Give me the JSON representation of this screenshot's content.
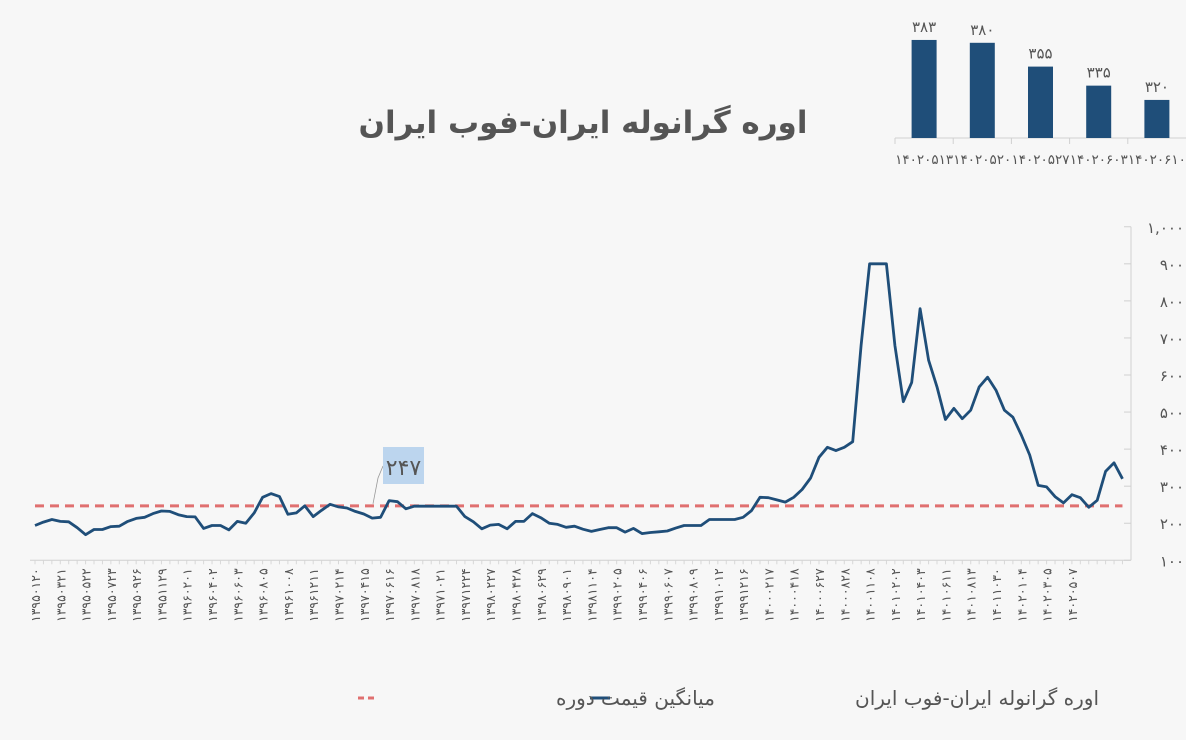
{
  "chart_data": [
    {
      "type": "line",
      "title": "اوره گرانوله ایران-فوب ایران",
      "xlabel": "",
      "ylabel": "",
      "ylim": [
        100,
        1000
      ],
      "y_ticks": [
        100,
        200,
        300,
        400,
        500,
        600,
        700,
        800,
        900,
        1000
      ],
      "y_tick_labels": [
        "۱۰۰",
        "۲۰۰",
        "۳۰۰",
        "۴۰۰",
        "۵۰۰",
        "۶۰۰",
        "۷۰۰",
        "۸۰۰",
        "۹۰۰",
        "۱,۰۰۰"
      ],
      "y_axis_side": "right",
      "grid": false,
      "legend_position": "bottom",
      "x_tick_labels": [
        "۱۳۹۵۰۱۲۰",
        "۱۳۹۵۰۳۲۱",
        "۱۳۹۵۰۵۲۲",
        "۱۳۹۵۰۷۲۳",
        "۱۳۹۵۰۹۲۶",
        "۱۳۹۵۱۱۲۹",
        "۱۳۹۶۰۲۰۱",
        "۱۳۹۶۰۴۰۲",
        "۱۳۹۶۰۶۰۳",
        "۱۳۹۶۰۸۰۵",
        "۱۳۹۶۱۰۰۸",
        "۱۳۹۶۱۲۱۱",
        "۱۳۹۷۰۲۱۴",
        "۱۳۹۷۰۴۱۵",
        "۱۳۹۷۰۶۱۶",
        "۱۳۹۷۰۸۱۸",
        "۱۳۹۷۱۰۲۱",
        "۱۳۹۷۱۲۲۴",
        "۱۳۹۸۰۲۲۷",
        "۱۳۹۸۰۴۲۸",
        "۱۳۹۸۰۶۲۹",
        "۱۳۹۸۰۹۰۱",
        "۱۳۹۸۱۱۰۴",
        "۱۳۹۹۰۲۰۵",
        "۱۳۹۹۰۴۰۶",
        "۱۳۹۹۰۶۰۷",
        "۱۳۹۹۰۸۰۹",
        "۱۳۹۹۱۰۱۲",
        "۱۳۹۹۱۲۱۶",
        "۱۴۰۰۰۲۱۷",
        "۱۴۰۰۰۴۱۸",
        "۱۴۰۰۰۶۲۷",
        "۱۴۰۰۰۸۲۸",
        "۱۴۰۰۱۱۰۸",
        "۱۴۰۱۰۲۰۲",
        "۱۴۰۱۰۴۰۳",
        "۱۴۰۱۰۶۱۱",
        "۱۴۰۱۰۸۱۳",
        "۱۴۰۱۱۰۳۰",
        "۱۴۰۲۰۱۰۴",
        "۱۴۰۲۰۳۰۵",
        "۱۴۰۲۰۵۰۷"
      ],
      "series": [
        {
          "name": "اوره گرانوله ایران-فوب ایران",
          "color": "#1f4e79",
          "style": "solid",
          "values": [
            194,
            203,
            210,
            205,
            204,
            188,
            169,
            183,
            183,
            191,
            192,
            205,
            213,
            216,
            226,
            233,
            232,
            223,
            218,
            217,
            186,
            194,
            194,
            182,
            205,
            200,
            228,
            270,
            280,
            272,
            224,
            228,
            247,
            218,
            235,
            251,
            244,
            241,
            232,
            225,
            214,
            216,
            261,
            258,
            239,
            246,
            246,
            246,
            246,
            246,
            246,
            218,
            204,
            185,
            195,
            197,
            185,
            205,
            205,
            226,
            215,
            200,
            197,
            189,
            192,
            184,
            178,
            183,
            188,
            188,
            176,
            186,
            172,
            175,
            177,
            179,
            187,
            194,
            194,
            194,
            210,
            210,
            210,
            210,
            216,
            234,
            270,
            269,
            263,
            257,
            270,
            291,
            322,
            378,
            405,
            396,
            405,
            420,
            680,
            900,
            900,
            900,
            680,
            528,
            580,
            779,
            640,
            568,
            480,
            510,
            482,
            505,
            568,
            594,
            559,
            505,
            486,
            438,
            384,
            302,
            298,
            272,
            255,
            277,
            269,
            243,
            262,
            340,
            363,
            320
          ]
        },
        {
          "name": "میانگین قیمت دوره",
          "color": "#e07070",
          "style": "dashed",
          "value": 247
        }
      ],
      "annotation": {
        "text": "۲۴۷",
        "value": 247,
        "box_color": "#bcd5ee"
      }
    },
    {
      "type": "bar",
      "title": "",
      "categories": [
        "۱۴۰۲۰۵۱۳",
        "۱۴۰۲۰۵۲۰",
        "۱۴۰۲۰۵۲۷",
        "۱۴۰۲۰۶۰۳",
        "۱۴۰۲۰۶۱۰"
      ],
      "values": [
        383,
        380,
        355,
        335,
        320
      ],
      "data_labels": [
        "۳۸۳",
        "۳۸۰",
        "۳۵۵",
        "۳۳۵",
        "۳۲۰"
      ],
      "ylim": [
        280,
        383
      ],
      "color": "#1f4e79",
      "legend_position": "none"
    }
  ]
}
